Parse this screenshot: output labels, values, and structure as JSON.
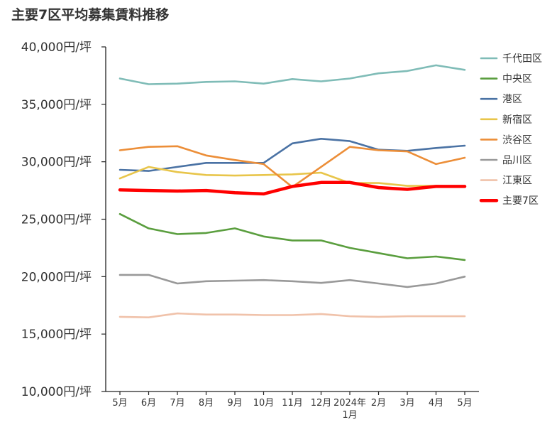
{
  "chart_data": {
    "type": "line",
    "title": "主要7区平均募集賃料推移",
    "xlabel": "",
    "ylabel": "",
    "categories": [
      [
        "5月"
      ],
      [
        "6月"
      ],
      [
        "7月"
      ],
      [
        "8月"
      ],
      [
        "9月"
      ],
      [
        "10月"
      ],
      [
        "11月"
      ],
      [
        "12月"
      ],
      [
        "2024年",
        "1月"
      ],
      [
        "2月"
      ],
      [
        "3月"
      ],
      [
        "4月"
      ],
      [
        "5月"
      ]
    ],
    "ylim": [
      10000,
      40000
    ],
    "yticks": [
      {
        "value": 40000,
        "label": "40,000円/坪"
      },
      {
        "value": 35000,
        "label": "35,000円/坪"
      },
      {
        "value": 30000,
        "label": "30,000円/坪"
      },
      {
        "value": 25000,
        "label": "25,000円/坪"
      },
      {
        "value": 20000,
        "label": "20,000円/坪"
      },
      {
        "value": 15000,
        "label": "15,000円/坪"
      },
      {
        "value": 10000,
        "label": "10,000円/坪"
      }
    ],
    "legend_position": "right",
    "grid": false,
    "series": [
      {
        "name": "千代田区",
        "color": "#7fbcb7",
        "values": [
          37250,
          36750,
          36800,
          36950,
          37000,
          36800,
          37200,
          37000,
          37250,
          37700,
          37900,
          38400,
          38000
        ]
      },
      {
        "name": "中央区",
        "color": "#5a9e3e",
        "values": [
          25450,
          24200,
          23700,
          23800,
          24200,
          23500,
          23150,
          23150,
          22500,
          22050,
          21600,
          21750,
          21450
        ]
      },
      {
        "name": "港区",
        "color": "#4a72a4",
        "values": [
          29300,
          29200,
          29550,
          29900,
          29900,
          29900,
          31600,
          32000,
          31800,
          31050,
          30950,
          31200,
          31400
        ]
      },
      {
        "name": "新宿区",
        "color": "#e8c54a",
        "values": [
          28550,
          29550,
          29100,
          28850,
          28800,
          28850,
          28900,
          29050,
          28150,
          28150,
          27900,
          27900,
          27850
        ]
      },
      {
        "name": "渋谷区",
        "color": "#ec8e38",
        "values": [
          31000,
          31300,
          31350,
          30550,
          30150,
          29800,
          27800,
          29550,
          31300,
          31000,
          30900,
          29800,
          30350
        ]
      },
      {
        "name": "品川区",
        "color": "#999999",
        "values": [
          20150,
          20150,
          19400,
          19600,
          19650,
          19700,
          19600,
          19450,
          19700,
          19400,
          19100,
          19400,
          20000
        ]
      },
      {
        "name": "江東区",
        "color": "#f0c2aa",
        "values": [
          16500,
          16450,
          16800,
          16700,
          16700,
          16650,
          16650,
          16750,
          16550,
          16500,
          16550,
          16550,
          16550
        ]
      },
      {
        "name": "主要7区",
        "color": "#ff0000",
        "bold": true,
        "values": [
          27550,
          27500,
          27450,
          27500,
          27300,
          27200,
          27850,
          28200,
          28200,
          27750,
          27600,
          27850,
          27850
        ]
      }
    ]
  }
}
